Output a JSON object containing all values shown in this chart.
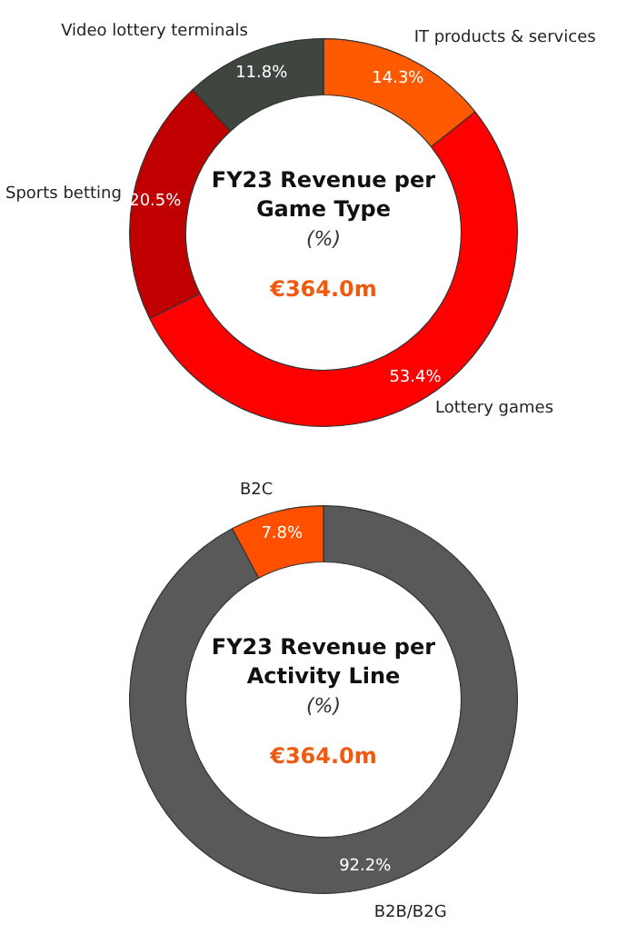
{
  "chart_data": [
    {
      "type": "donut",
      "title": "FY23 Revenue per Game Type",
      "subtitle": "(%)",
      "annotations": [
        "€364.0m"
      ],
      "categories": [
        "IT products & services",
        "Lottery games",
        "Sports betting",
        "Video lottery terminals"
      ],
      "values": [
        14.3,
        53.4,
        20.5,
        11.8
      ],
      "colors": [
        "#ff5a00",
        "#ff0000",
        "#c00000",
        "#3f453f"
      ],
      "value_labels": [
        "14.3%",
        "53.4%",
        "20.5%",
        "11.8%"
      ]
    },
    {
      "type": "donut",
      "title": "FY23 Revenue per Activity Line",
      "subtitle": "(%)",
      "annotations": [
        "€364.0m"
      ],
      "categories": [
        "B2B/B2G",
        "B2C"
      ],
      "values": [
        92.2,
        7.8
      ],
      "colors": [
        "#595959",
        "#ff5000"
      ],
      "value_labels": [
        "92.2%",
        "7.8%"
      ]
    }
  ]
}
